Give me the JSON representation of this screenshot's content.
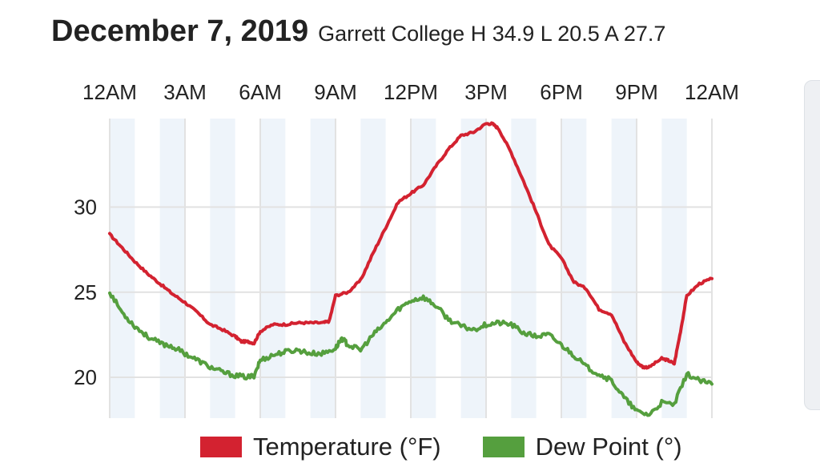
{
  "header": {
    "date": "December 7, 2019",
    "station_summary": "Garrett College H 34.9 L 20.5 A 27.7"
  },
  "colors": {
    "temperature": "#d32230",
    "dew_point": "#559f3e",
    "shade_band": "#eef4fa",
    "grid": "#e2e2e2"
  },
  "chart_data": {
    "type": "line",
    "title": "December 7, 2019",
    "x_tick_labels": [
      "12AM",
      "3AM",
      "6AM",
      "9AM",
      "12PM",
      "3PM",
      "6PM",
      "9PM",
      "12AM"
    ],
    "x_hours_range": [
      0,
      24
    ],
    "ylim": [
      17.6,
      35.2
    ],
    "y_ticks": [
      20,
      25,
      30
    ],
    "grid": true,
    "legend_position": "bottom",
    "series": [
      {
        "name": "Temperature (°F)",
        "color": "#d32230",
        "x": [
          0,
          0.5,
          1,
          1.5,
          2,
          2.5,
          3,
          3.5,
          4,
          4.5,
          5,
          5.25,
          5.5,
          5.75,
          6,
          6.5,
          7,
          7.5,
          8,
          8.5,
          8.75,
          9,
          9.5,
          10,
          10.5,
          11,
          11.5,
          12,
          12.5,
          13,
          13.5,
          14,
          14.5,
          15,
          15.25,
          15.5,
          16,
          16.5,
          17,
          17.5,
          18,
          18.5,
          19,
          19.5,
          20,
          20.5,
          21,
          21.25,
          21.5,
          22,
          22.25,
          22.5,
          22.75,
          23,
          23.5,
          24
        ],
        "y": [
          28.4,
          27.6,
          26.8,
          26.1,
          25.5,
          24.9,
          24.4,
          23.8,
          23.1,
          22.8,
          22.4,
          22.1,
          22.1,
          22.0,
          22.7,
          23.1,
          23.1,
          23.2,
          23.2,
          23.2,
          23.3,
          24.8,
          25.0,
          25.7,
          27.3,
          28.8,
          30.3,
          30.8,
          31.3,
          32.4,
          33.4,
          34.2,
          34.4,
          34.9,
          34.9,
          34.6,
          33.2,
          31.5,
          29.7,
          27.8,
          27.0,
          25.6,
          25.2,
          24.0,
          23.7,
          22.1,
          20.9,
          20.6,
          20.6,
          21.1,
          21.0,
          20.8,
          22.7,
          24.8,
          25.5,
          25.8
        ]
      },
      {
        "name": "Dew Point (°)",
        "color": "#559f3e",
        "x": [
          0,
          0.5,
          1,
          1.5,
          2,
          2.5,
          3,
          3.5,
          4,
          4.5,
          5,
          5.5,
          5.75,
          6,
          6.5,
          7,
          7.5,
          8,
          8.5,
          9,
          9.25,
          9.5,
          10,
          10.5,
          11,
          11.5,
          12,
          12.5,
          13,
          13.5,
          14,
          14.5,
          15,
          15.5,
          16,
          16.5,
          17,
          17.5,
          18,
          18.5,
          19,
          19.5,
          20,
          20.5,
          21,
          21.5,
          22,
          22.5,
          23,
          23.5,
          24
        ],
        "y": [
          25.0,
          23.8,
          23.0,
          22.4,
          22.0,
          21.8,
          21.4,
          21.0,
          20.6,
          20.3,
          20.1,
          20.0,
          20.1,
          21.0,
          21.3,
          21.5,
          21.6,
          21.4,
          21.4,
          21.7,
          22.3,
          21.9,
          21.6,
          22.5,
          23.2,
          24.0,
          24.5,
          24.7,
          24.2,
          23.4,
          23.0,
          22.8,
          23.1,
          23.2,
          23.1,
          22.6,
          22.4,
          22.5,
          21.9,
          21.3,
          20.6,
          20.2,
          19.8,
          18.8,
          18.0,
          17.8,
          18.5,
          18.4,
          20.2,
          19.8,
          19.6
        ]
      }
    ]
  },
  "legend": {
    "temperature_label": "Temperature (°F)",
    "dew_point_label": "Dew Point (°)"
  }
}
